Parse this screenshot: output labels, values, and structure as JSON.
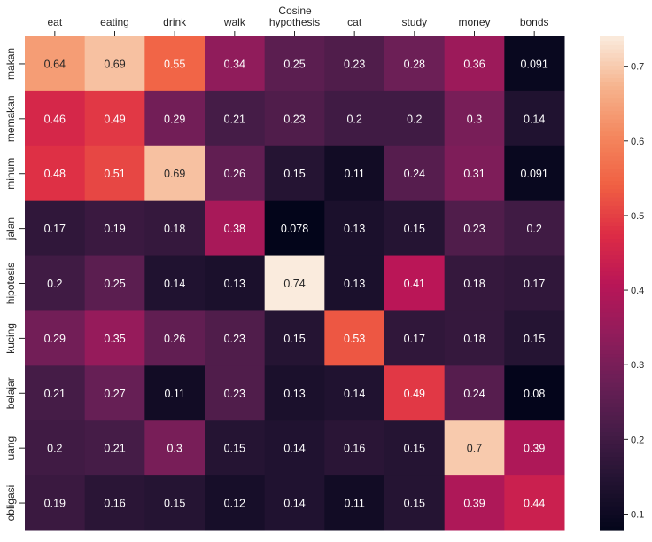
{
  "chart_data": {
    "type": "heatmap",
    "title": "Cosine",
    "x_categories": [
      "eat",
      "eating",
      "drink",
      "walk",
      "hypothesis",
      "cat",
      "study",
      "money",
      "bonds"
    ],
    "y_categories": [
      "makan",
      "memakan",
      "minum",
      "jalan",
      "hipotesis",
      "kucing",
      "belajar",
      "uang",
      "obligasi"
    ],
    "values": [
      [
        0.64,
        0.69,
        0.55,
        0.34,
        0.25,
        0.23,
        0.28,
        0.36,
        0.091
      ],
      [
        0.46,
        0.49,
        0.29,
        0.21,
        0.23,
        0.2,
        0.2,
        0.3,
        0.14
      ],
      [
        0.48,
        0.51,
        0.69,
        0.26,
        0.15,
        0.11,
        0.24,
        0.31,
        0.091
      ],
      [
        0.17,
        0.19,
        0.18,
        0.38,
        0.078,
        0.13,
        0.15,
        0.23,
        0.2
      ],
      [
        0.2,
        0.25,
        0.14,
        0.13,
        0.74,
        0.13,
        0.41,
        0.18,
        0.17
      ],
      [
        0.29,
        0.35,
        0.26,
        0.23,
        0.15,
        0.53,
        0.17,
        0.18,
        0.15
      ],
      [
        0.21,
        0.27,
        0.11,
        0.23,
        0.13,
        0.14,
        0.49,
        0.24,
        0.08
      ],
      [
        0.2,
        0.21,
        0.3,
        0.15,
        0.14,
        0.16,
        0.15,
        0.7,
        0.39
      ],
      [
        0.19,
        0.16,
        0.15,
        0.12,
        0.14,
        0.11,
        0.15,
        0.39,
        0.44
      ]
    ],
    "colormap": "rocket",
    "vmin": 0.078,
    "vmax": 0.74,
    "colorbar_ticks": [
      0.1,
      0.2,
      0.3,
      0.4,
      0.5,
      0.6,
      0.7
    ],
    "x_axis_position": "top",
    "annotations": true
  }
}
